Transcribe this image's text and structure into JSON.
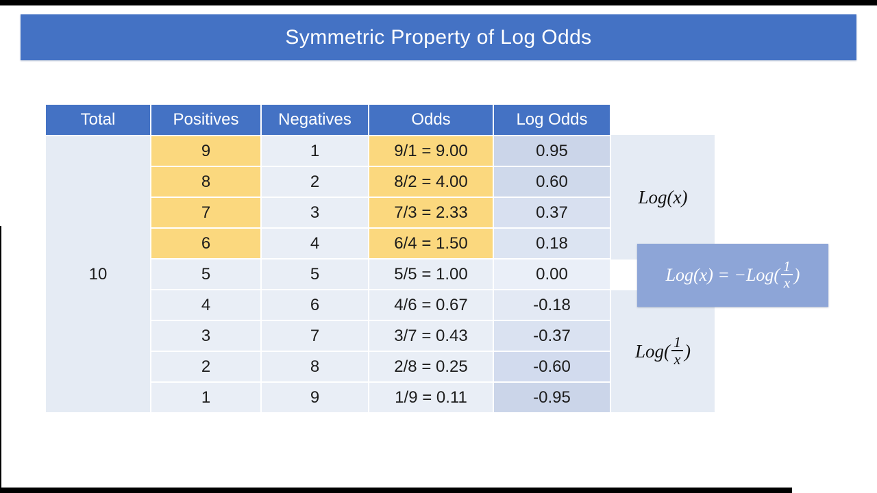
{
  "page": {
    "title": "Symmetric Property of Log Odds"
  },
  "table": {
    "headers": [
      "Total",
      "Positives",
      "Negatives",
      "Odds",
      "Log Odds"
    ],
    "total": "10",
    "rows": [
      {
        "positives": "9",
        "negatives": "1",
        "odds": "9/1 = 9.00",
        "log_odds": "0.95",
        "highlight": true,
        "log_odds_bg": "#cbd5e9"
      },
      {
        "positives": "8",
        "negatives": "2",
        "odds": "8/2 = 4.00",
        "log_odds": "0.60",
        "highlight": true,
        "log_odds_bg": "#cfd9eb"
      },
      {
        "positives": "7",
        "negatives": "3",
        "odds": "7/3 = 2.33",
        "log_odds": "0.37",
        "highlight": true,
        "log_odds_bg": "#d8e0f0"
      },
      {
        "positives": "6",
        "negatives": "4",
        "odds": "6/4 = 1.50",
        "log_odds": "0.18",
        "highlight": true,
        "log_odds_bg": "#dce4f2"
      },
      {
        "positives": "5",
        "negatives": "5",
        "odds": "5/5 = 1.00",
        "log_odds": "0.00",
        "highlight": false,
        "log_odds_bg": "#eaeff8"
      },
      {
        "positives": "4",
        "negatives": "6",
        "odds": "4/6 = 0.67",
        "log_odds": "-0.18",
        "highlight": false,
        "log_odds_bg": "#e3e9f4"
      },
      {
        "positives": "3",
        "negatives": "7",
        "odds": "3/7 = 0.43",
        "log_odds": "-0.37",
        "highlight": false,
        "log_odds_bg": "#dae2f1"
      },
      {
        "positives": "2",
        "negatives": "8",
        "odds": "2/8 = 0.25",
        "log_odds": "-0.60",
        "highlight": false,
        "log_odds_bg": "#d2dbee"
      },
      {
        "positives": "1",
        "negatives": "9",
        "odds": "1/9 = 0.11",
        "log_odds": "-0.95",
        "highlight": false,
        "log_odds_bg": "#cbd5e9"
      }
    ]
  },
  "annotations": {
    "log_x": {
      "text": "Log(x)"
    },
    "formula": {
      "prefix": "Log(x) = −Log(",
      "numerator": "1",
      "denominator": "x",
      "suffix": ")"
    },
    "log_inv": {
      "prefix": "Log(",
      "numerator": "1",
      "denominator": "x",
      "suffix": ")"
    }
  },
  "colors": {
    "banner": "#4472c4",
    "header": "#4472c4",
    "header_text": "#ffffff",
    "cell": "#e9eef6",
    "highlight": "#fbd87e",
    "side_panel": "#e5ebf4",
    "total_cell": "#e5ebf4",
    "formula_box": "#8da5d7",
    "formula_text": "#ffffff",
    "body_text": "#1c1c1c",
    "letterbox": "#000000"
  }
}
